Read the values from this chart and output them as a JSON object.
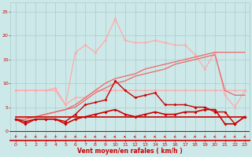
{
  "x": [
    0,
    1,
    2,
    3,
    4,
    5,
    6,
    7,
    8,
    9,
    10,
    11,
    12,
    13,
    14,
    15,
    16,
    17,
    18,
    19,
    20,
    21,
    22,
    23
  ],
  "line_rafales_light": [
    8.5,
    8.5,
    8.5,
    8.5,
    9.0,
    5.5,
    16.5,
    18.0,
    16.5,
    19.0,
    23.5,
    19.0,
    18.5,
    18.5,
    19.0,
    18.5,
    18.0,
    18.0,
    16.0,
    13.0,
    16.5,
    7.5,
    5.0,
    8.5
  ],
  "line_moy_light": [
    8.5,
    8.5,
    8.5,
    8.5,
    8.5,
    5.5,
    7.0,
    7.0,
    8.5,
    8.5,
    8.5,
    8.5,
    8.5,
    8.5,
    8.5,
    8.5,
    8.5,
    8.5,
    8.5,
    8.5,
    8.5,
    8.5,
    8.5,
    8.5
  ],
  "line_rising1": [
    2.5,
    2.5,
    3.0,
    3.5,
    4.0,
    4.5,
    5.5,
    7.0,
    8.5,
    10.0,
    11.0,
    11.5,
    12.0,
    13.0,
    13.5,
    14.0,
    14.5,
    15.0,
    15.5,
    16.0,
    16.5,
    16.5,
    16.5,
    16.5
  ],
  "line_rising2": [
    2.5,
    2.5,
    3.0,
    3.5,
    4.0,
    4.5,
    5.0,
    6.5,
    8.0,
    9.0,
    10.0,
    10.5,
    11.5,
    12.0,
    12.5,
    13.0,
    14.0,
    14.5,
    15.0,
    15.5,
    16.0,
    8.5,
    7.5,
    7.5
  ],
  "line_dark_peaks": [
    2.5,
    2.0,
    2.5,
    2.5,
    2.5,
    2.0,
    3.5,
    5.5,
    6.0,
    6.5,
    10.5,
    8.5,
    7.0,
    7.5,
    8.0,
    5.5,
    5.5,
    5.5,
    5.0,
    5.0,
    4.0,
    4.0,
    1.5,
    3.0
  ],
  "line_dark_flat": [
    2.5,
    1.5,
    2.5,
    2.5,
    2.5,
    1.5,
    2.5,
    3.0,
    3.5,
    4.0,
    4.5,
    3.5,
    3.0,
    3.5,
    4.0,
    3.5,
    3.5,
    4.0,
    4.0,
    4.5,
    4.5,
    1.5,
    1.5,
    3.0
  ],
  "line_horiz": [
    3.0,
    3.0,
    3.0,
    3.0,
    3.0,
    3.0,
    3.0,
    3.0,
    3.0,
    3.0,
    3.0,
    3.0,
    3.0,
    3.0,
    3.0,
    3.0,
    3.0,
    3.0,
    3.0,
    3.0,
    3.0,
    3.0,
    3.0,
    3.0
  ],
  "wind_angles": [
    200,
    210,
    215,
    210,
    205,
    210,
    215,
    225,
    235,
    245,
    250,
    250,
    245,
    240,
    235,
    235,
    230,
    225,
    225,
    220,
    230,
    225,
    230,
    225
  ],
  "bg_color": "#cce8e8",
  "grid_color": "#aacccc",
  "color_light": "#ffaaaa",
  "color_mid": "#ee6666",
  "color_dark": "#cc0000",
  "xlabel": "Vent moyen/en rafales ( km/h )",
  "ylim": [
    -2,
    27
  ],
  "xlim": [
    -0.5,
    23.5
  ],
  "yticks": [
    0,
    5,
    10,
    15,
    20,
    25
  ],
  "xticks": [
    0,
    1,
    2,
    3,
    4,
    5,
    6,
    7,
    8,
    9,
    10,
    11,
    12,
    13,
    14,
    15,
    16,
    17,
    18,
    19,
    20,
    21,
    22,
    23
  ]
}
